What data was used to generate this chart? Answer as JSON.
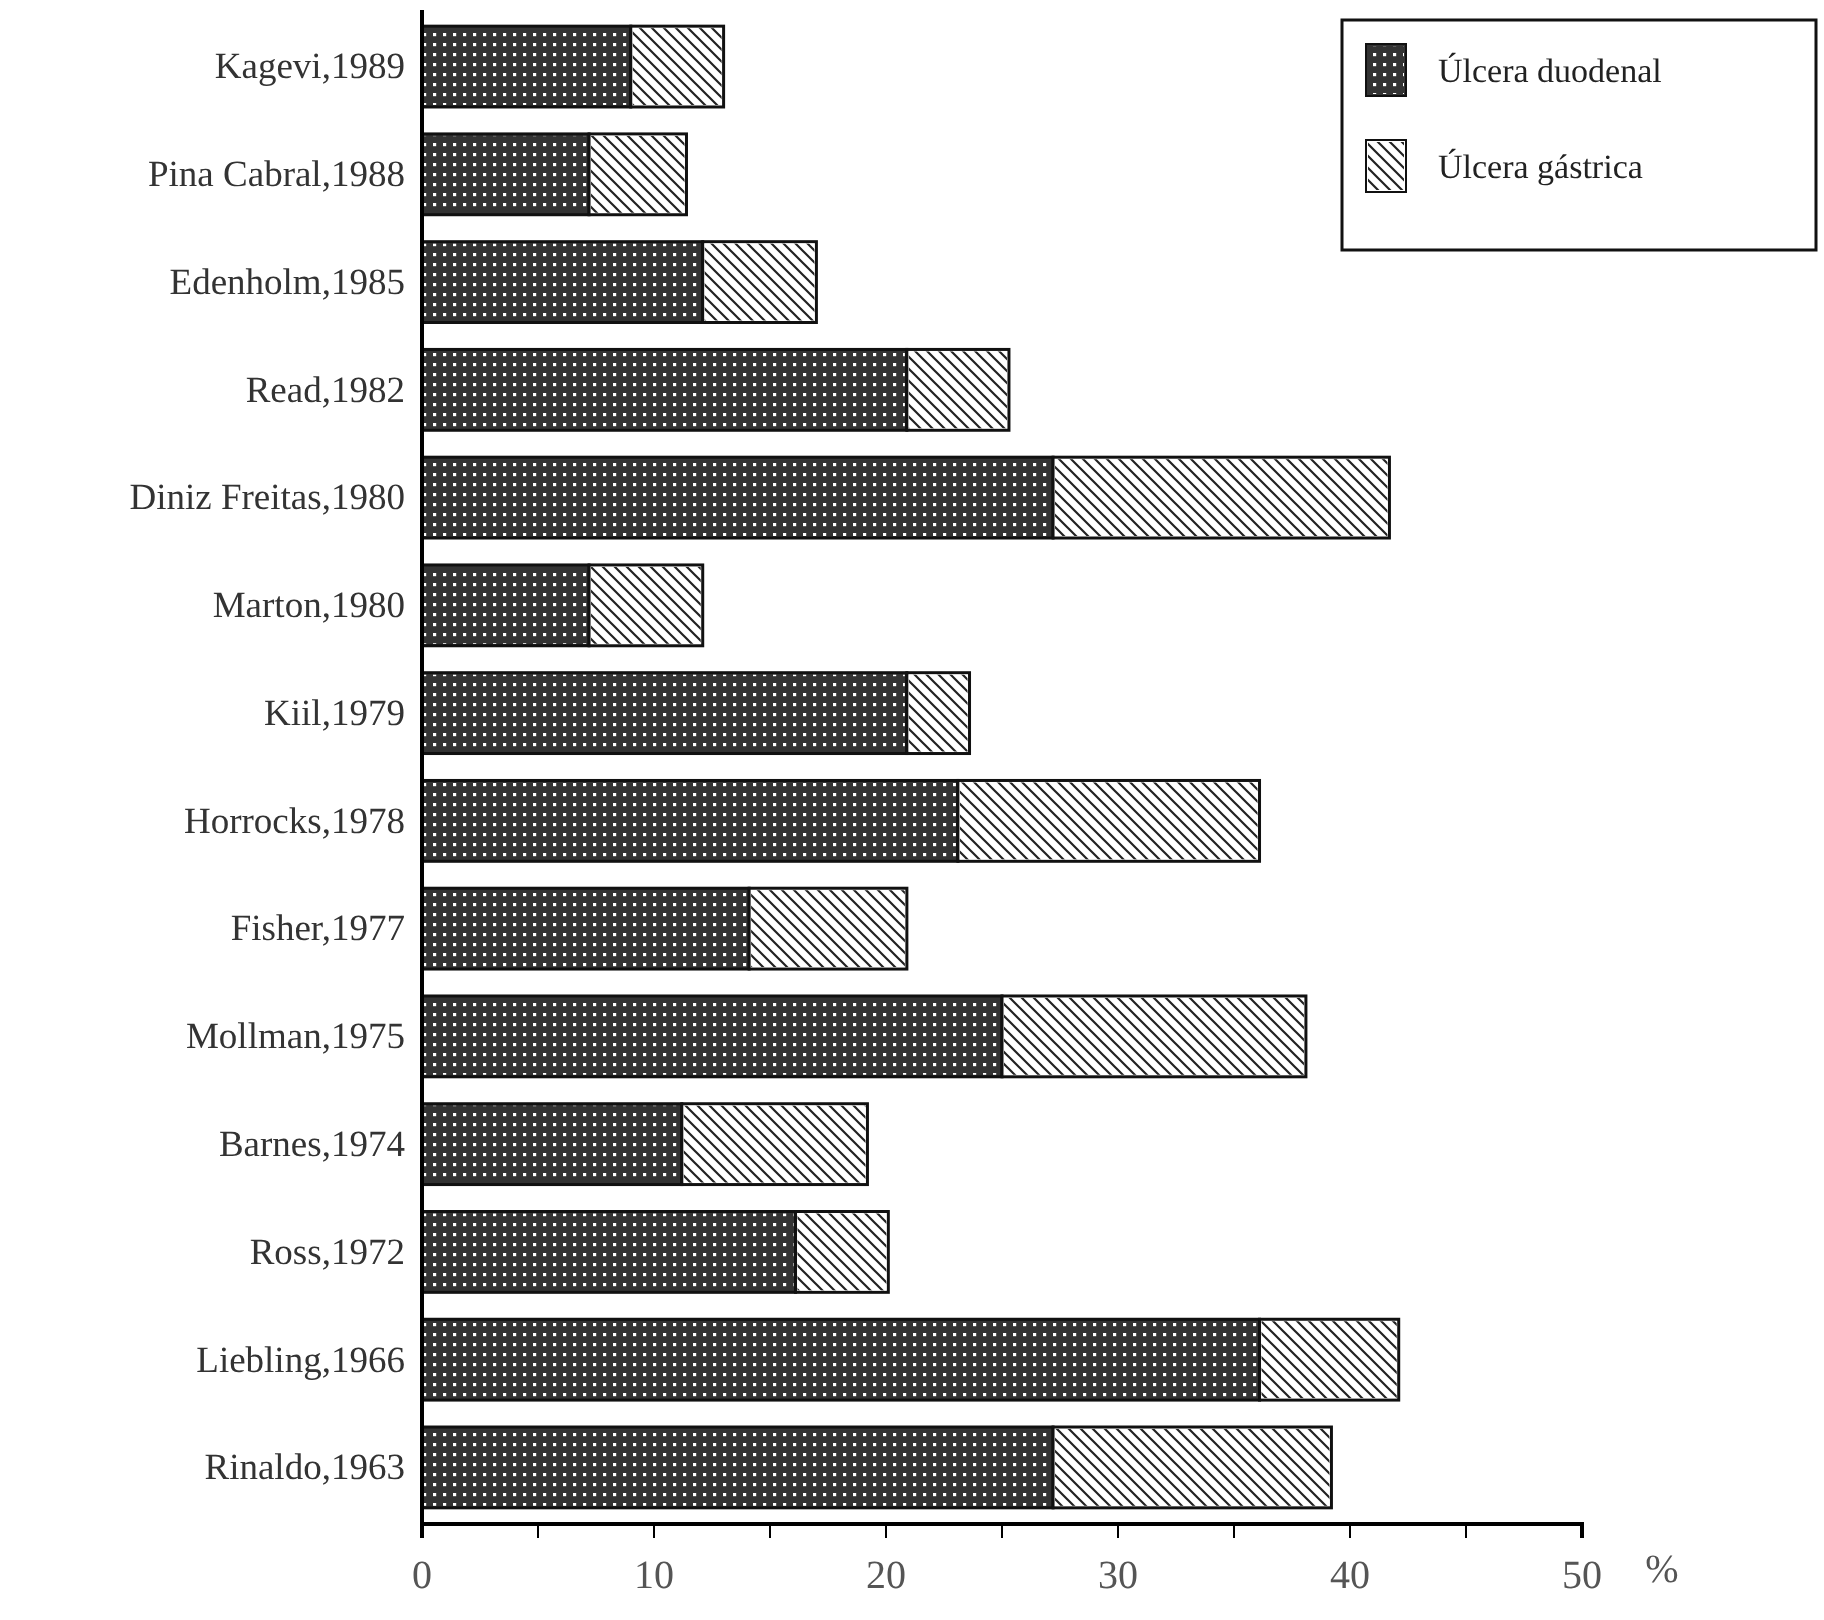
{
  "chart_data": {
    "type": "bar",
    "orientation": "horizontal",
    "stacked": true,
    "categories": [
      "Kagevi,1989",
      "Pina Cabral,1988",
      "Edenholm,1985",
      "Read,1982",
      "Diniz Freitas,1980",
      "Marton,1980",
      "Kiil,1979",
      "Horrocks,1978",
      "Fisher,1977",
      "Mollman,1975",
      "Barnes,1974",
      "Ross,1972",
      "Liebling,1966",
      "Rinaldo,1963"
    ],
    "series": [
      {
        "name": "Úlcera duodenal",
        "color": "#333333",
        "values": [
          9.0,
          7.2,
          12.1,
          20.9,
          27.2,
          7.2,
          20.9,
          23.1,
          14.1,
          25.0,
          11.2,
          16.1,
          36.1,
          27.2
        ]
      },
      {
        "name": "Úlcera gástrica",
        "color": "#ffffff",
        "values": [
          4.0,
          4.2,
          4.9,
          4.4,
          14.5,
          4.9,
          2.7,
          13.0,
          6.8,
          13.1,
          8.0,
          4.0,
          6.0,
          12.0
        ]
      }
    ],
    "xlabel": "%",
    "xlim": [
      0,
      50
    ],
    "xticks": [
      0,
      {
        "value": 5,
        "label": null
      },
      10,
      {
        "value": 15,
        "label": null
      },
      20,
      {
        "value": 25,
        "label": null
      },
      30,
      {
        "value": 35,
        "label": null
      },
      40,
      {
        "value": 45,
        "label": null
      },
      50
    ],
    "legend": "top right",
    "grid": false
  }
}
